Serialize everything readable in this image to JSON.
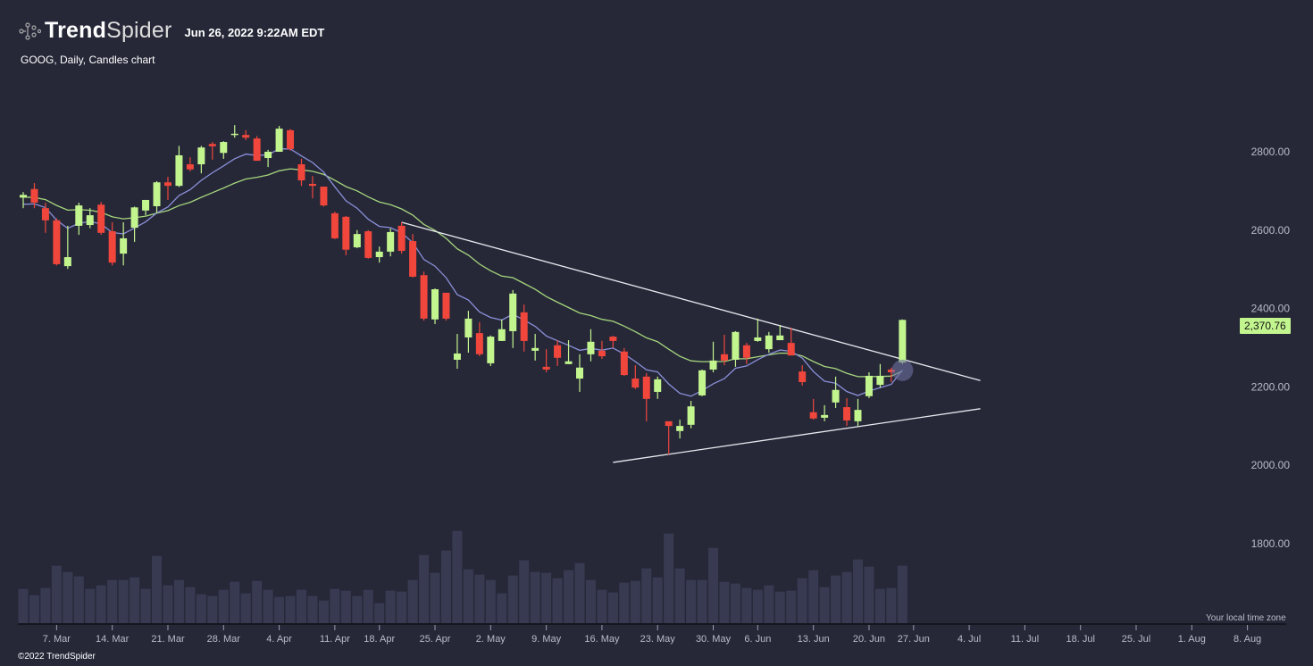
{
  "header": {
    "brand_bold": "Trend",
    "brand_light": "Spider",
    "datetime": "Jun 26, 2022 9:22AM EDT",
    "subtitle": "GOOG, Daily, Candles chart"
  },
  "footer": {
    "copyright": "©2022 TrendSpider",
    "timezone": "Your local time zone"
  },
  "colors": {
    "background": "#262838",
    "up": "#c3f58f",
    "down": "#f0463c",
    "ma_fast": "#8b8fd8",
    "ma_slow": "#a6d67c",
    "volume": "#383a52",
    "trendline": "#e8e8ee",
    "axis_text": "#b9bcc7"
  },
  "chart_data": {
    "type": "candlestick",
    "symbol": "GOOG",
    "interval": "Daily",
    "last_price_label": "2,370.76",
    "y_ticks": [
      "2800.00",
      "2600.00",
      "2400.00",
      "2200.00",
      "2000.00",
      "1800.00"
    ],
    "y_tick_values": [
      2800,
      2600,
      2400,
      2200,
      2000,
      1800
    ],
    "ylim": [
      1630,
      3000
    ],
    "x_ticks": [
      {
        "label": "7. Mar",
        "index": 3
      },
      {
        "label": "14. Mar",
        "index": 8
      },
      {
        "label": "21. Mar",
        "index": 13
      },
      {
        "label": "28. Mar",
        "index": 18
      },
      {
        "label": "4. Apr",
        "index": 23
      },
      {
        "label": "11. Apr",
        "index": 28
      },
      {
        "label": "18. Apr",
        "index": 32
      },
      {
        "label": "25. Apr",
        "index": 37
      },
      {
        "label": "2. May",
        "index": 42
      },
      {
        "label": "9. May",
        "index": 47
      },
      {
        "label": "16. May",
        "index": 52
      },
      {
        "label": "23. May",
        "index": 57
      },
      {
        "label": "30. May",
        "index": 62
      },
      {
        "label": "6. Jun",
        "index": 66
      },
      {
        "label": "13. Jun",
        "index": 71
      },
      {
        "label": "20. Jun",
        "index": 76
      },
      {
        "label": "27. Jun",
        "index": 80
      },
      {
        "label": "4. Jul",
        "index": 85
      },
      {
        "label": "11. Jul",
        "index": 90
      },
      {
        "label": "18. Jul",
        "index": 95
      },
      {
        "label": "25. Jul",
        "index": 100
      },
      {
        "label": "1. Aug",
        "index": 105
      },
      {
        "label": "8. Aug",
        "index": 110
      }
    ],
    "ohlc": [
      [
        2683,
        2697,
        2656,
        2690
      ],
      [
        2705,
        2720,
        2656,
        2670
      ],
      [
        2656,
        2670,
        2593,
        2625
      ],
      [
        2625,
        2630,
        2510,
        2513
      ],
      [
        2508,
        2611,
        2501,
        2531
      ],
      [
        2611,
        2670,
        2588,
        2663
      ],
      [
        2613,
        2656,
        2605,
        2638
      ],
      [
        2665,
        2672,
        2588,
        2593
      ],
      [
        2597,
        2620,
        2510,
        2517
      ],
      [
        2540,
        2620,
        2510,
        2579
      ],
      [
        2606,
        2660,
        2570,
        2658
      ],
      [
        2650,
        2677,
        2638,
        2677
      ],
      [
        2661,
        2725,
        2643,
        2722
      ],
      [
        2722,
        2736,
        2677,
        2713
      ],
      [
        2713,
        2815,
        2710,
        2791
      ],
      [
        2768,
        2786,
        2750,
        2755
      ],
      [
        2768,
        2815,
        2745,
        2811
      ],
      [
        2820,
        2825,
        2780,
        2814
      ],
      [
        2797,
        2827,
        2782,
        2825
      ],
      [
        2843,
        2868,
        2836,
        2846
      ],
      [
        2843,
        2855,
        2830,
        2836
      ],
      [
        2834,
        2840,
        2777,
        2777
      ],
      [
        2784,
        2805,
        2761,
        2800
      ],
      [
        2800,
        2866,
        2800,
        2859
      ],
      [
        2855,
        2858,
        2803,
        2807
      ],
      [
        2768,
        2782,
        2713,
        2727
      ],
      [
        2718,
        2738,
        2681,
        2713
      ],
      [
        2711,
        2711,
        2660,
        2663
      ],
      [
        2643,
        2647,
        2577,
        2579
      ],
      [
        2634,
        2636,
        2536,
        2550
      ],
      [
        2556,
        2600,
        2554,
        2590
      ],
      [
        2597,
        2600,
        2527,
        2529
      ],
      [
        2531,
        2558,
        2517,
        2545
      ],
      [
        2545,
        2604,
        2533,
        2595
      ],
      [
        2611,
        2620,
        2540,
        2547
      ],
      [
        2572,
        2590,
        2479,
        2481
      ],
      [
        2485,
        2494,
        2369,
        2374
      ],
      [
        2372,
        2451,
        2360,
        2449
      ],
      [
        2440,
        2440,
        2369,
        2374
      ],
      [
        2269,
        2335,
        2246,
        2285
      ],
      [
        2326,
        2394,
        2287,
        2374
      ],
      [
        2337,
        2365,
        2278,
        2283
      ],
      [
        2260,
        2331,
        2253,
        2328
      ],
      [
        2317,
        2372,
        2317,
        2347
      ],
      [
        2342,
        2447,
        2299,
        2438
      ],
      [
        2390,
        2410,
        2290,
        2317
      ],
      [
        2292,
        2335,
        2267,
        2299
      ],
      [
        2251,
        2296,
        2237,
        2244
      ],
      [
        2306,
        2319,
        2253,
        2274
      ],
      [
        2258,
        2319,
        2258,
        2265
      ],
      [
        2221,
        2283,
        2187,
        2249
      ],
      [
        2283,
        2347,
        2265,
        2315
      ],
      [
        2292,
        2317,
        2271,
        2278
      ],
      [
        2328,
        2330,
        2300,
        2317
      ],
      [
        2290,
        2299,
        2228,
        2230
      ],
      [
        2221,
        2255,
        2194,
        2198
      ],
      [
        2226,
        2235,
        2112,
        2169
      ],
      [
        2187,
        2226,
        2169,
        2219
      ],
      [
        2112,
        2112,
        2027,
        2100
      ],
      [
        2087,
        2116,
        2068,
        2100
      ],
      [
        2103,
        2164,
        2094,
        2150
      ],
      [
        2178,
        2244,
        2176,
        2242
      ],
      [
        2244,
        2315,
        2237,
        2267
      ],
      [
        2283,
        2333,
        2255,
        2267
      ],
      [
        2269,
        2342,
        2251,
        2340
      ],
      [
        2306,
        2312,
        2258,
        2274
      ],
      [
        2317,
        2374,
        2315,
        2326
      ],
      [
        2296,
        2340,
        2287,
        2331
      ],
      [
        2319,
        2358,
        2319,
        2331
      ],
      [
        2312,
        2351,
        2280,
        2280
      ],
      [
        2239,
        2255,
        2203,
        2212
      ],
      [
        2135,
        2169,
        2116,
        2119
      ],
      [
        2121,
        2153,
        2112,
        2128
      ],
      [
        2160,
        2226,
        2146,
        2192
      ],
      [
        2148,
        2171,
        2100,
        2114
      ],
      [
        2112,
        2169,
        2100,
        2141
      ],
      [
        2176,
        2237,
        2171,
        2228
      ],
      [
        2205,
        2258,
        2198,
        2228
      ],
      [
        2244,
        2249,
        2212,
        2237
      ],
      [
        2262,
        2372,
        2258,
        2370.76
      ]
    ],
    "volume_relative": [
      118,
      97,
      121,
      196,
      175,
      160,
      118,
      130,
      148,
      148,
      157,
      118,
      229,
      130,
      148,
      124,
      100,
      94,
      115,
      142,
      103,
      145,
      115,
      91,
      94,
      115,
      94,
      79,
      118,
      112,
      94,
      115,
      70,
      112,
      109,
      148,
      232,
      172,
      247,
      313,
      184,
      166,
      148,
      103,
      163,
      214,
      175,
      172,
      154,
      181,
      205,
      148,
      115,
      106,
      139,
      145,
      187,
      157,
      304,
      187,
      148,
      148,
      256,
      142,
      136,
      121,
      115,
      130,
      109,
      112,
      154,
      181,
      124,
      163,
      175,
      217,
      193,
      118,
      121,
      196
    ],
    "ma_fast": {
      "type": "EMA",
      "period": 8,
      "seed": 2659
    },
    "ma_slow": {
      "type": "EMA",
      "period": 21,
      "seed": 2684
    },
    "trendlines": [
      {
        "name": "upper",
        "from": [
          34,
          2620
        ],
        "to": [
          86,
          2216
        ]
      },
      {
        "name": "lower",
        "from": [
          53,
          2007
        ],
        "to": [
          86,
          2144
        ]
      }
    ],
    "marker": {
      "index": 79,
      "price": 2242
    }
  }
}
